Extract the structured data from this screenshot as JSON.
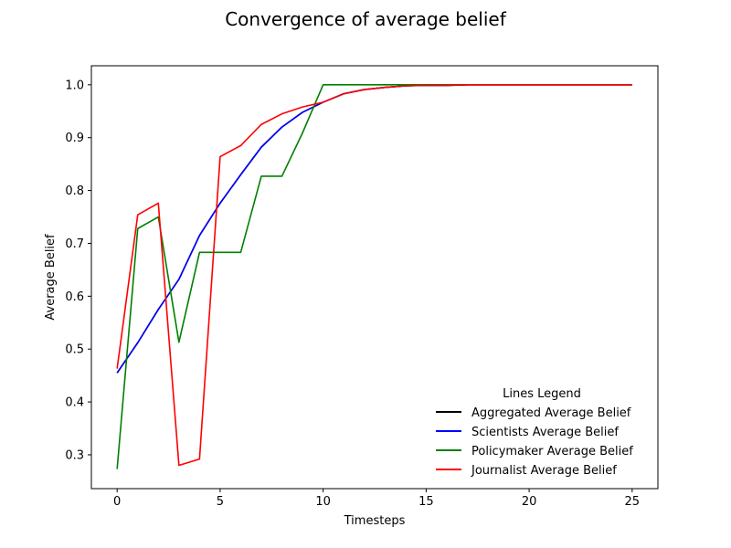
{
  "chart_data": {
    "type": "line",
    "title": "Convergence of average belief",
    "xlabel": "Timesteps",
    "ylabel": "Average Belief",
    "xlim": [
      -1.25,
      26.25
    ],
    "ylim": [
      0.236,
      1.036
    ],
    "xticks": [
      0,
      5,
      10,
      15,
      20,
      25
    ],
    "yticks": [
      0.3,
      0.4,
      0.5,
      0.6,
      0.7,
      0.8,
      0.9,
      1.0
    ],
    "grid": false,
    "legend": {
      "title": "Lines Legend",
      "position": "lower-right"
    },
    "x": [
      0,
      1,
      2,
      3,
      4,
      5,
      6,
      7,
      8,
      9,
      10,
      11,
      12,
      13,
      14,
      15,
      16,
      17,
      18,
      19,
      20,
      21,
      22,
      23,
      24,
      25
    ],
    "series": [
      {
        "name": "Aggregated Average Belief",
        "color": "#000000",
        "values": [
          0.455,
          0.512,
          0.575,
          0.632,
          0.715,
          0.776,
          0.83,
          0.882,
          0.92,
          0.948,
          0.967,
          0.983,
          0.991,
          0.995,
          0.998,
          0.999,
          0.999,
          1.0,
          1.0,
          1.0,
          1.0,
          1.0,
          1.0,
          1.0,
          1.0,
          1.0
        ]
      },
      {
        "name": "Scientists Average Belief",
        "color": "#0000ff",
        "values": [
          0.455,
          0.512,
          0.575,
          0.632,
          0.715,
          0.776,
          0.83,
          0.882,
          0.92,
          0.948,
          0.967,
          0.983,
          0.991,
          0.995,
          0.998,
          0.999,
          0.999,
          1.0,
          1.0,
          1.0,
          1.0,
          1.0,
          1.0,
          1.0,
          1.0,
          1.0
        ]
      },
      {
        "name": "Policymaker Average Belief",
        "color": "#008000",
        "values": [
          0.273,
          0.728,
          0.75,
          0.513,
          0.683,
          0.683,
          0.683,
          0.827,
          0.827,
          0.909,
          1.0,
          1.0,
          1.0,
          1.0,
          1.0,
          1.0,
          1.0,
          1.0,
          1.0,
          1.0,
          1.0,
          1.0,
          1.0,
          1.0,
          1.0,
          1.0
        ]
      },
      {
        "name": "Journalist Average Belief",
        "color": "#ff0000",
        "values": [
          0.463,
          0.754,
          0.776,
          0.28,
          0.292,
          0.864,
          0.885,
          0.925,
          0.945,
          0.958,
          0.967,
          0.983,
          0.991,
          0.995,
          0.998,
          0.999,
          0.999,
          1.0,
          1.0,
          1.0,
          1.0,
          1.0,
          1.0,
          1.0,
          1.0,
          1.0
        ]
      }
    ]
  }
}
